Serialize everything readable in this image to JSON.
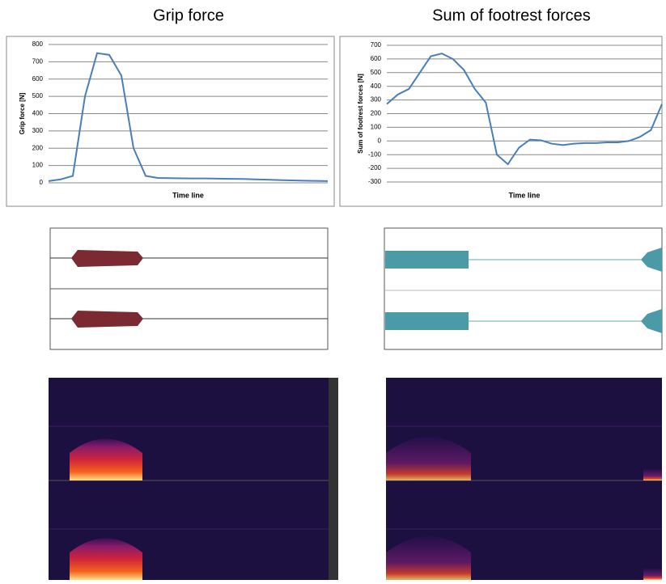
{
  "chart_data": [
    {
      "type": "line",
      "title": "Grip force",
      "y_label": "Grip force [N]",
      "x_label": "Time line",
      "categories": [
        null,
        null,
        null,
        null,
        null,
        null,
        null,
        null,
        null,
        null,
        null,
        null,
        null,
        null,
        null,
        null,
        null,
        null,
        null,
        null,
        null,
        null,
        null,
        null
      ],
      "series": [
        {
          "color": "#4a7ebb",
          "values": [
            10,
            20,
            40,
            500,
            750,
            740,
            620,
            200,
            40,
            28,
            27,
            26,
            25,
            25,
            24,
            23,
            22,
            20,
            18,
            16,
            14,
            12,
            11,
            10
          ]
        }
      ],
      "ylim": [
        0,
        800
      ],
      "yticks": [
        0,
        100,
        200,
        300,
        400,
        500,
        600,
        700,
        800
      ],
      "grid": true
    },
    {
      "type": "line",
      "title": "Sum of footrest forces",
      "y_label": "Sum of footrest forces [N]",
      "x_label": "Time line",
      "categories": [
        null,
        null,
        null,
        null,
        null,
        null,
        null,
        null,
        null,
        null,
        null,
        null,
        null,
        null,
        null,
        null,
        null,
        null,
        null,
        null,
        null,
        null,
        null,
        null,
        null,
        null
      ],
      "series": [
        {
          "color": "#4a7ebb",
          "values": [
            270,
            340,
            380,
            500,
            620,
            640,
            600,
            520,
            380,
            280,
            -100,
            -170,
            -50,
            10,
            5,
            -20,
            -30,
            -20,
            -15,
            -15,
            -10,
            -10,
            0,
            30,
            80,
            270
          ]
        }
      ],
      "ylim": [
        -300,
        700
      ],
      "yticks": [
        -300,
        -200,
        -100,
        0,
        100,
        200,
        300,
        400,
        500,
        600,
        700
      ],
      "grid": true
    }
  ]
}
